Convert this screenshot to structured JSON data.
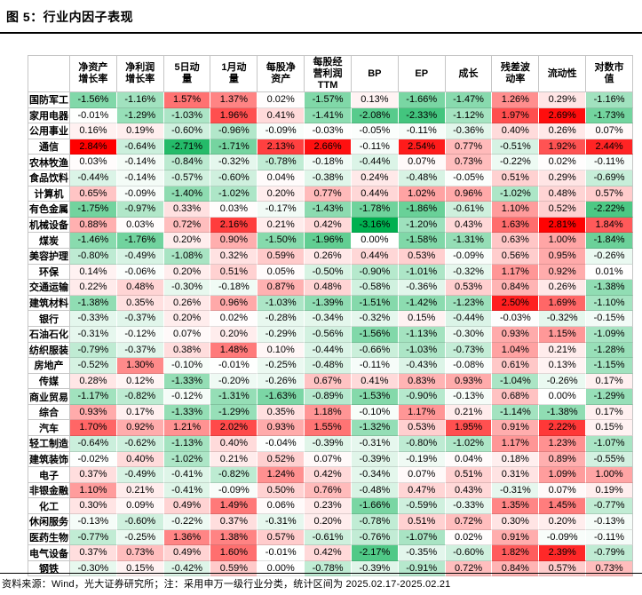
{
  "title": "图 5：行业内因子表现",
  "footer": "资料来源：Wind，光大证券研究所；注：采用申万一级行业分类，统计区间为 2025.02.17-2025.02.21",
  "chart_data": {
    "type": "heatmap",
    "title": "行业内因子表现",
    "value_unit": "percent",
    "legend_position": "none",
    "color_scale": {
      "max_color": "#FF0000",
      "mid_color": "#FFFFFF",
      "min_color": "#00B050",
      "max_value": 2.84,
      "mid_value": 0,
      "min_value": -3.16
    },
    "columns": [
      {
        "label": "净资产增长率",
        "display": "净资产\n增长率"
      },
      {
        "label": "净利润增长率",
        "display": "净利润\n增长率"
      },
      {
        "label": "5日动量",
        "display": "5日动\n量"
      },
      {
        "label": "1月动量",
        "display": "1月动\n量"
      },
      {
        "label": "每股净资产",
        "display": "每股净\n资产"
      },
      {
        "label": "每股经营利润TTM",
        "display": "每股经\n营利润\nTTM"
      },
      {
        "label": "BP",
        "display": "BP"
      },
      {
        "label": "EP",
        "display": "EP"
      },
      {
        "label": "成长",
        "display": "成长"
      },
      {
        "label": "残差波动率",
        "display": "残差波\n动率"
      },
      {
        "label": "流动性",
        "display": "流动性"
      },
      {
        "label": "对数市值",
        "display": "对数市\n值"
      }
    ],
    "rows": [
      {
        "industry": "国防军工",
        "values": [
          -1.56,
          -1.16,
          1.57,
          1.37,
          0.02,
          -1.57,
          0.13,
          -1.66,
          -1.47,
          1.26,
          0.29,
          -1.16
        ]
      },
      {
        "industry": "家用电器",
        "values": [
          -0.01,
          -1.29,
          -1.03,
          1.96,
          0.41,
          -1.41,
          -2.08,
          -2.33,
          -1.12,
          1.97,
          2.69,
          -1.73
        ]
      },
      {
        "industry": "公用事业",
        "values": [
          0.16,
          0.19,
          -0.6,
          -0.96,
          -0.09,
          -0.03,
          -0.05,
          -0.11,
          -0.36,
          0.4,
          0.26,
          0.07
        ]
      },
      {
        "industry": "通信",
        "values": [
          2.84,
          -0.64,
          -2.71,
          -1.71,
          2.13,
          2.66,
          -0.11,
          2.54,
          0.77,
          -0.51,
          1.92,
          2.44
        ]
      },
      {
        "industry": "农林牧渔",
        "values": [
          0.03,
          -0.14,
          -0.84,
          -0.32,
          -0.78,
          -0.18,
          -0.44,
          0.07,
          0.73,
          -0.22,
          0.02,
          -0.11
        ]
      },
      {
        "industry": "食品饮料",
        "values": [
          -0.44,
          -0.14,
          -0.57,
          -0.6,
          0.04,
          -0.38,
          0.24,
          -0.48,
          -0.05,
          0.51,
          0.29,
          -0.69
        ]
      },
      {
        "industry": "计算机",
        "values": [
          0.65,
          -0.09,
          -1.4,
          -1.02,
          0.2,
          0.77,
          0.44,
          1.02,
          0.96,
          -1.02,
          0.48,
          0.57
        ]
      },
      {
        "industry": "有色金属",
        "values": [
          -1.75,
          -0.97,
          0.33,
          0.03,
          -0.17,
          -1.43,
          -1.78,
          -1.86,
          -0.61,
          1.1,
          0.52,
          -2.22
        ]
      },
      {
        "industry": "机械设备",
        "values": [
          0.88,
          0.03,
          0.72,
          2.16,
          0.21,
          0.42,
          -3.16,
          -1.2,
          0.43,
          1.63,
          2.81,
          1.84
        ]
      },
      {
        "industry": "煤炭",
        "values": [
          -1.46,
          -1.76,
          0.2,
          0.9,
          -1.5,
          -1.96,
          0.0,
          -1.58,
          -1.31,
          0.63,
          1.0,
          -1.84
        ]
      },
      {
        "industry": "美容护理",
        "values": [
          -0.8,
          -0.49,
          -1.08,
          0.32,
          0.59,
          0.26,
          0.44,
          0.53,
          -0.09,
          0.56,
          0.95,
          -0.26
        ]
      },
      {
        "industry": "环保",
        "values": [
          0.14,
          -0.06,
          0.2,
          0.51,
          0.05,
          -0.5,
          -0.9,
          -1.01,
          -0.32,
          1.17,
          0.92,
          0.01
        ]
      },
      {
        "industry": "交通运输",
        "values": [
          0.22,
          0.48,
          -0.3,
          -0.18,
          0.87,
          0.48,
          -0.58,
          -0.36,
          0.53,
          0.84,
          0.26,
          -1.38
        ]
      },
      {
        "industry": "建筑材料",
        "values": [
          -1.38,
          0.35,
          0.26,
          0.96,
          -1.03,
          -1.39,
          -1.51,
          -1.42,
          -1.23,
          2.5,
          1.69,
          -1.1
        ]
      },
      {
        "industry": "银行",
        "values": [
          -0.33,
          -0.37,
          0.2,
          0.02,
          -0.28,
          -0.34,
          -0.32,
          0.15,
          -0.44,
          -0.03,
          -0.32,
          -0.15
        ]
      },
      {
        "industry": "石油石化",
        "values": [
          -0.31,
          -0.12,
          0.07,
          0.2,
          -0.29,
          -0.56,
          -1.56,
          -1.13,
          -0.3,
          0.93,
          1.15,
          -1.09
        ]
      },
      {
        "industry": "纺织服装",
        "values": [
          -0.79,
          -0.37,
          0.38,
          1.48,
          0.1,
          -0.44,
          -0.66,
          -1.03,
          -0.73,
          1.04,
          0.21,
          -1.28
        ]
      },
      {
        "industry": "房地产",
        "values": [
          -0.52,
          1.3,
          -0.1,
          -0.01,
          -0.25,
          -0.48,
          -0.11,
          -0.43,
          -0.08,
          0.61,
          0.13,
          -1.15
        ]
      },
      {
        "industry": "传媒",
        "values": [
          0.28,
          0.12,
          -1.33,
          -0.2,
          -0.26,
          0.67,
          0.41,
          0.83,
          0.93,
          -1.04,
          -0.26,
          0.17
        ]
      },
      {
        "industry": "商业贸易",
        "values": [
          -1.17,
          -0.82,
          -0.12,
          -1.31,
          -1.63,
          -0.89,
          -1.53,
          -0.9,
          -0.13,
          0.68,
          0.0,
          -1.29
        ]
      },
      {
        "industry": "综合",
        "values": [
          0.93,
          0.17,
          -1.33,
          -1.29,
          0.35,
          1.18,
          -0.1,
          1.17,
          0.21,
          -1.14,
          -1.38,
          0.17
        ]
      },
      {
        "industry": "汽车",
        "values": [
          1.7,
          0.92,
          1.21,
          2.02,
          0.93,
          1.55,
          -1.32,
          0.53,
          1.95,
          0.91,
          2.22,
          0.15
        ]
      },
      {
        "industry": "轻工制造",
        "values": [
          -0.64,
          -0.62,
          -1.13,
          0.4,
          -0.04,
          -0.39,
          -0.31,
          -0.8,
          -1.02,
          1.17,
          1.23,
          -1.07
        ]
      },
      {
        "industry": "建筑装饰",
        "values": [
          -0.02,
          0.4,
          -1.02,
          0.21,
          0.52,
          0.07,
          -0.39,
          -0.19,
          0.04,
          0.18,
          0.89,
          -0.55
        ]
      },
      {
        "industry": "电子",
        "values": [
          0.37,
          -0.49,
          -0.41,
          -0.82,
          1.24,
          0.42,
          -0.34,
          0.07,
          0.51,
          0.31,
          1.09,
          1.0
        ]
      },
      {
        "industry": "非银金融",
        "values": [
          1.1,
          0.21,
          -0.41,
          -0.09,
          0.5,
          0.76,
          -0.48,
          0.47,
          0.43,
          -0.31,
          0.07,
          0.19
        ]
      },
      {
        "industry": "化工",
        "values": [
          0.3,
          0.09,
          0.49,
          1.49,
          0.06,
          0.23,
          -1.66,
          -0.59,
          -0.33,
          1.35,
          1.45,
          -0.77
        ]
      },
      {
        "industry": "休闲服务",
        "values": [
          -0.13,
          -0.6,
          -0.22,
          0.37,
          -0.31,
          0.2,
          -0.78,
          0.51,
          0.72,
          0.3,
          0.2,
          -0.13
        ]
      },
      {
        "industry": "医药生物",
        "values": [
          -0.77,
          -0.25,
          1.36,
          1.38,
          0.57,
          -0.61,
          -0.76,
          -1.07,
          0.02,
          0.91,
          -0.09,
          -0.11
        ]
      },
      {
        "industry": "电气设备",
        "values": [
          0.37,
          0.73,
          0.49,
          1.6,
          -0.01,
          0.42,
          -2.17,
          -0.35,
          -0.6,
          1.82,
          2.39,
          -0.79
        ]
      },
      {
        "industry": "钢铁",
        "values": [
          -0.3,
          0.15,
          -0.42,
          0.59,
          0.0,
          -0.78,
          -0.39,
          -0.91,
          0.72,
          0.84,
          0.57,
          0.73
        ]
      }
    ]
  }
}
